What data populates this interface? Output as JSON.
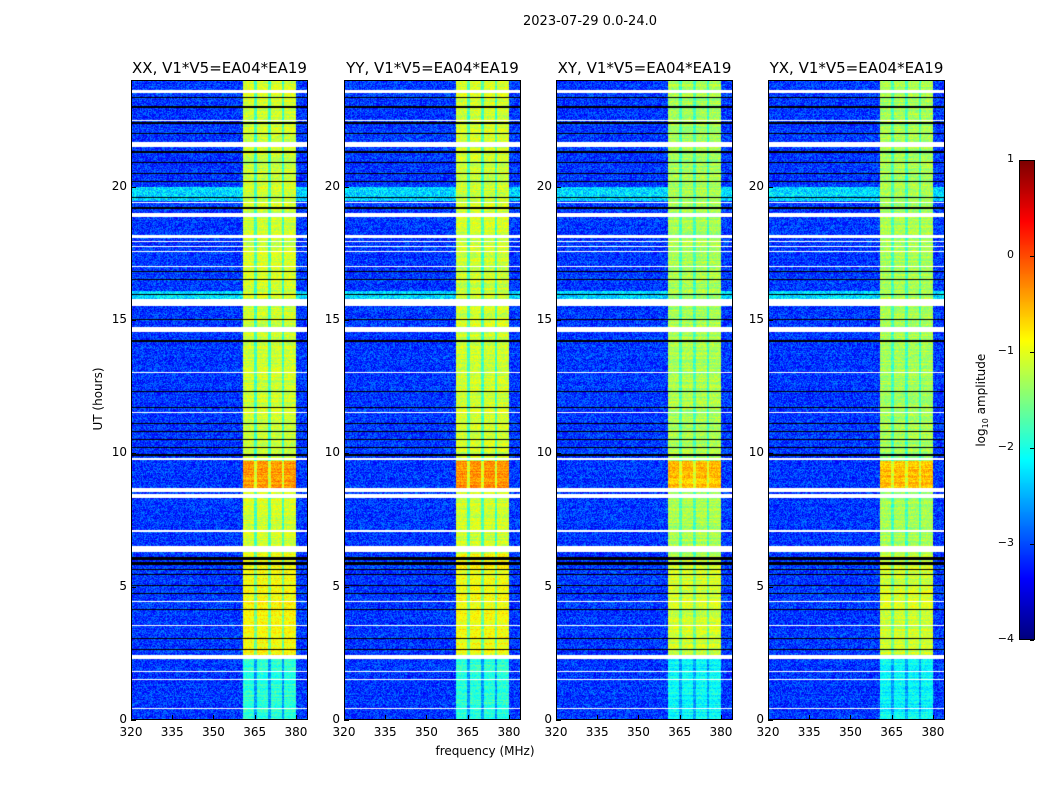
{
  "chart_data": {
    "type": "heatmap",
    "title": "2023-07-29 0.0-24.0",
    "xlabel": "frequency (MHz)",
    "ylabel": "UT (hours)",
    "xlim": [
      320,
      384.4
    ],
    "ylim": [
      0,
      24
    ],
    "xticks": [
      "320",
      "335",
      "350",
      "365",
      "380"
    ],
    "xtick_values": [
      320,
      335,
      350,
      365,
      380
    ],
    "yticks": [
      "0",
      "5",
      "10",
      "15",
      "20"
    ],
    "ytick_values": [
      0,
      5,
      10,
      15,
      20
    ],
    "panels": [
      {
        "title": "XX, V1*V5=EA04*EA19"
      },
      {
        "title": "YY, V1*V5=EA04*EA19"
      },
      {
        "title": "XY, V1*V5=EA04*EA19"
      },
      {
        "title": "YX, V1*V5=EA04*EA19"
      }
    ],
    "colorbar": {
      "label_prefix": "log",
      "label_sub": "10",
      "label_suffix": " amplitude",
      "range": [
        -4,
        1
      ],
      "ticks": [
        "1",
        "0",
        "−1",
        "−2",
        "−3",
        "−4"
      ],
      "tick_values": [
        1,
        0,
        -1,
        -2,
        -3,
        -4
      ],
      "colormap": "jet"
    },
    "background_level": -3.1,
    "signal_band_mhz": [
      360.7,
      380.4
    ],
    "subband_edges_mhz": [
      365.4,
      370.5,
      375.6
    ],
    "signal_levels": [
      {
        "hours": [
          0,
          2.35
        ],
        "level": -1.9
      },
      {
        "hours": [
          2.35,
          6.2
        ],
        "level": -0.9
      },
      {
        "hours": [
          6.5,
          8.3
        ],
        "level": -1.1
      },
      {
        "hours": [
          8.7,
          9.7
        ],
        "level": -0.35
      },
      {
        "hours": [
          9.7,
          24
        ],
        "level": -1.1
      }
    ],
    "flagged_hours": [
      [
        0.38,
        0.42
      ],
      [
        1.45,
        1.52
      ],
      [
        1.75,
        1.8
      ],
      [
        2.25,
        2.4
      ],
      [
        3.5,
        3.55
      ],
      [
        4.4,
        4.45
      ],
      [
        6.3,
        6.5
      ],
      [
        7.05,
        7.1
      ],
      [
        8.3,
        8.45
      ],
      [
        8.55,
        8.7
      ],
      [
        9.75,
        9.8
      ],
      [
        11.5,
        11.55
      ],
      [
        13.0,
        13.05
      ],
      [
        14.55,
        14.75
      ],
      [
        15.55,
        15.8
      ],
      [
        17.0,
        17.05
      ],
      [
        17.55,
        17.6
      ],
      [
        17.75,
        17.8
      ],
      [
        17.95,
        18.0
      ],
      [
        18.1,
        18.2
      ],
      [
        18.9,
        19.05
      ],
      [
        19.4,
        19.45
      ],
      [
        21.5,
        21.7
      ],
      [
        22.5,
        22.55
      ],
      [
        23.55,
        23.65
      ]
    ],
    "dark_hours": [
      [
        2.6,
        2.65
      ],
      [
        3.0,
        3.05
      ],
      [
        4.1,
        4.15
      ],
      [
        4.7,
        4.75
      ],
      [
        5.0,
        5.05
      ],
      [
        5.4,
        5.45
      ],
      [
        5.6,
        5.65
      ],
      [
        5.8,
        5.9
      ],
      [
        6.0,
        6.1
      ],
      [
        9.9,
        9.95
      ],
      [
        10.2,
        10.25
      ],
      [
        10.5,
        10.55
      ],
      [
        10.8,
        10.85
      ],
      [
        11.1,
        11.15
      ],
      [
        11.7,
        11.75
      ],
      [
        12.3,
        12.35
      ],
      [
        14.2,
        14.25
      ],
      [
        15.0,
        15.05
      ],
      [
        15.95,
        16.0
      ],
      [
        16.5,
        16.55
      ],
      [
        16.8,
        16.85
      ],
      [
        19.2,
        19.25
      ],
      [
        19.6,
        19.65
      ],
      [
        20.2,
        20.25
      ],
      [
        20.5,
        20.55
      ],
      [
        20.9,
        20.95
      ],
      [
        21.3,
        21.35
      ],
      [
        22.0,
        22.05
      ],
      [
        22.4,
        22.45
      ],
      [
        23.0,
        23.05
      ],
      [
        23.35,
        23.4
      ]
    ]
  }
}
